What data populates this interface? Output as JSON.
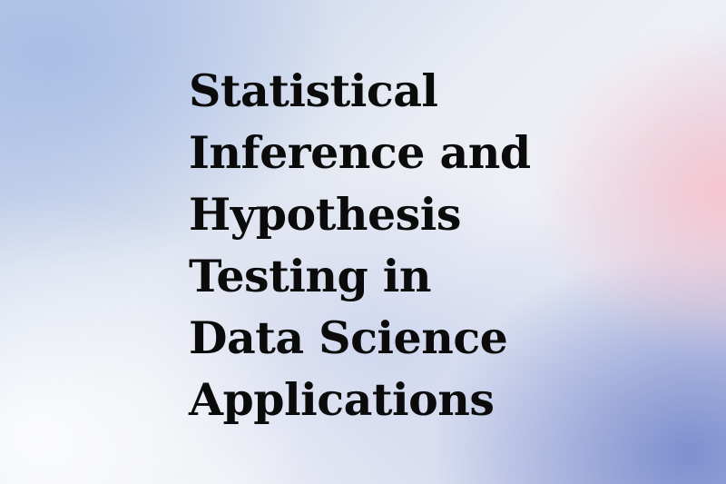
{
  "title": {
    "lines": [
      "Statistical",
      "Inference and",
      "Hypothesis",
      "Testing in",
      "Data Science",
      "Applications"
    ]
  },
  "colors": {
    "text": "#0b0b0b",
    "gradient_blue": "#a8bee4",
    "gradient_pink": "#f6c4ce",
    "gradient_indigo": "#7a8ccd",
    "gradient_light": "#eef0f6"
  }
}
